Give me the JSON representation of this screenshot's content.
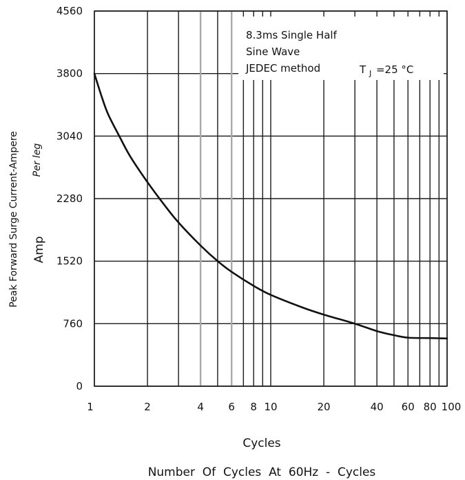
{
  "chart_data": {
    "type": "line",
    "xscale": "log",
    "xlim": [
      1,
      100
    ],
    "ylim": [
      0,
      4560
    ],
    "grid": true,
    "x_ticks": [
      1,
      2,
      4,
      6,
      8,
      10,
      20,
      40,
      60,
      80,
      100
    ],
    "x_tick_labels": [
      "1",
      "2",
      "4",
      "6",
      "8",
      "10",
      "20",
      "40",
      "60",
      "80",
      "100"
    ],
    "y_ticks": [
      0,
      760,
      1520,
      2280,
      3040,
      3800,
      4560
    ],
    "y_tick_labels": [
      "0",
      "760",
      "1520",
      "2280",
      "3040",
      "3800",
      "4560"
    ],
    "series": [
      {
        "x": [
          1,
          1.1,
          1.2,
          1.4,
          1.6,
          2,
          2.5,
          3,
          4,
          5,
          6,
          8,
          10,
          15,
          20,
          30,
          40,
          50,
          60,
          80,
          100
        ],
        "y": [
          3800,
          3520,
          3300,
          3020,
          2790,
          2480,
          2200,
          1990,
          1710,
          1520,
          1390,
          1220,
          1110,
          960,
          870,
          760,
          670,
          620,
          590,
          585,
          580
        ]
      }
    ],
    "annotations": {
      "line1": "8.3ms Single Half",
      "line2": "Sine Wave",
      "line3": "JEDEC method",
      "temp_T": "T",
      "temp_sub": "J",
      "temp_rest": "=25",
      "temp_unit": "°C"
    },
    "ylabel": {
      "line1": "Peak Forward Surge Current-Ampere",
      "line2": "Per leg",
      "line3": "Amp"
    },
    "xlabel": {
      "line1": "Cycles",
      "line2": "Number  Of  Cycles  At  60Hz  -  Cycles"
    }
  }
}
